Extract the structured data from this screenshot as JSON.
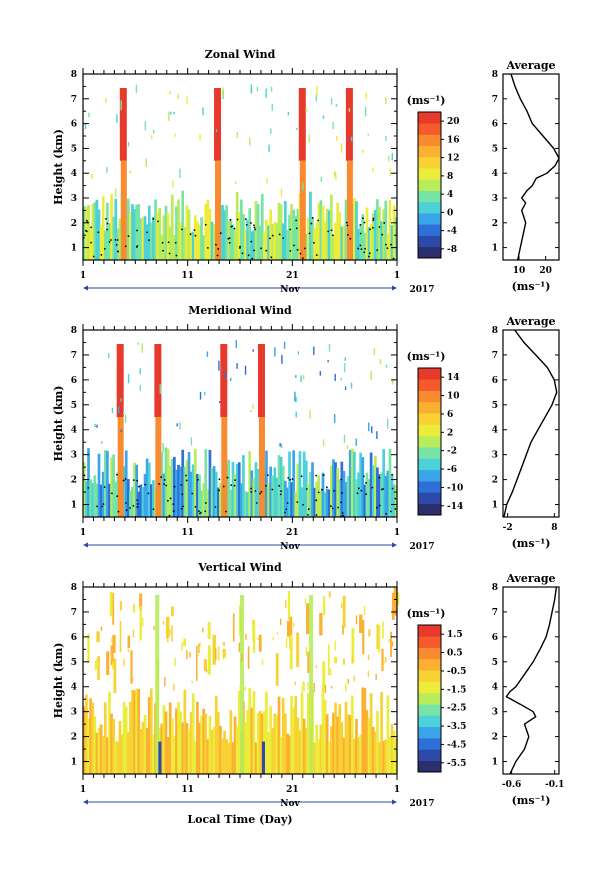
{
  "figure": {
    "xlabel": "Local Time (Day)",
    "month_label": "Nov",
    "year_label": "2017",
    "ylabel": "Height (km)",
    "unit_label": "(ms⁻¹)",
    "average_title": "Average"
  },
  "chart_data": [
    {
      "type": "heatmap",
      "title": "Zonal Wind",
      "x_ticks": [
        "1",
        "11",
        "21",
        "1"
      ],
      "y_ticks": [
        "1",
        "2",
        "3",
        "4",
        "5",
        "6",
        "7",
        "8"
      ],
      "ylim": [
        0.5,
        8
      ],
      "colorbar": {
        "ticks": [
          "20",
          "16",
          "12",
          "8",
          "4",
          "0",
          "-4",
          "-8"
        ],
        "range": [
          -10,
          22
        ],
        "colors": [
          "#2b2f6e",
          "#2e4aa8",
          "#2e6fd8",
          "#3aa5e8",
          "#4cd1d9",
          "#77e3a5",
          "#b8ec5a",
          "#ecec3a",
          "#f8d235",
          "#fbb032",
          "#f88a30",
          "#f45a2c",
          "#e83a2c"
        ]
      },
      "field": {
        "base": [
          "#4cd1d9",
          "#77e3a5",
          "#b8ec5a",
          "#ecec3a"
        ],
        "spikes": [
          0.13,
          0.43,
          0.7,
          0.85
        ],
        "zero_contour": true
      },
      "profile": {
        "xlabel": "(ms⁻¹)",
        "x_ticks": [
          "10",
          "20"
        ],
        "xlim": [
          4,
          25
        ],
        "height": [
          0.5,
          1.0,
          1.5,
          2.0,
          2.5,
          2.8,
          3.0,
          3.3,
          3.5,
          3.8,
          4.0,
          4.3,
          4.6,
          5.0,
          5.5,
          6.0,
          6.5,
          7.0,
          7.5,
          8.0
        ],
        "value": [
          9.5,
          10.5,
          11.5,
          12.5,
          11.0,
          12.5,
          11.0,
          13.0,
          15.0,
          16.5,
          20.5,
          23.5,
          25.0,
          23.0,
          19.0,
          15.0,
          13.0,
          10.5,
          8.5,
          7.0
        ]
      }
    },
    {
      "type": "heatmap",
      "title": "Meridional Wind",
      "x_ticks": [
        "1",
        "11",
        "21",
        "1"
      ],
      "y_ticks": [
        "1",
        "2",
        "3",
        "4",
        "5",
        "6",
        "7",
        "8"
      ],
      "ylim": [
        0.5,
        8
      ],
      "colorbar": {
        "ticks": [
          "14",
          "10",
          "6",
          "2",
          "-2",
          "-6",
          "-10",
          "-14"
        ],
        "range": [
          -16,
          16
        ],
        "colors": [
          "#2b2f6e",
          "#2e4aa8",
          "#2e6fd8",
          "#3aa5e8",
          "#4cd1d9",
          "#77e3a5",
          "#b8ec5a",
          "#ecec3a",
          "#f8d235",
          "#fbb032",
          "#f88a30",
          "#f45a2c",
          "#e83a2c"
        ]
      },
      "field": {
        "base": [
          "#2e6fd8",
          "#3aa5e8",
          "#4cd1d9",
          "#77e3a5",
          "#b8ec5a"
        ],
        "spikes": [
          0.12,
          0.24,
          0.45,
          0.57
        ],
        "zero_contour": true
      },
      "profile": {
        "xlabel": "(ms⁻¹)",
        "x_ticks": [
          "-2",
          "8"
        ],
        "xlim": [
          -3,
          9
        ],
        "height": [
          0.5,
          1.0,
          1.5,
          2.0,
          2.5,
          3.0,
          3.5,
          4.0,
          4.5,
          5.0,
          5.5,
          6.0,
          6.5,
          7.0,
          7.5,
          8.0
        ],
        "value": [
          -2.8,
          -2.2,
          -1.0,
          0.0,
          1.0,
          2.0,
          3.0,
          4.5,
          6.0,
          7.5,
          8.5,
          8.0,
          6.5,
          4.0,
          1.5,
          -0.5
        ]
      }
    },
    {
      "type": "heatmap",
      "title": "Vertical Wind",
      "x_ticks": [
        "1",
        "11",
        "21",
        "1"
      ],
      "y_ticks": [
        "1",
        "2",
        "3",
        "4",
        "5",
        "6",
        "7",
        "8"
      ],
      "ylim": [
        0.5,
        8
      ],
      "colorbar": {
        "ticks": [
          "1.5",
          "0.5",
          "-0.5",
          "-1.5",
          "-2.5",
          "-3.5",
          "-4.5",
          "-5.5"
        ],
        "range": [
          -6,
          2
        ],
        "colors": [
          "#2b2f6e",
          "#2e4aa8",
          "#2e6fd8",
          "#3aa5e8",
          "#4cd1d9",
          "#77e3a5",
          "#b8ec5a",
          "#ecec3a",
          "#f8d235",
          "#fbb032",
          "#f88a30",
          "#f45a2c",
          "#e83a2c"
        ]
      },
      "field": {
        "base": [
          "#fbb032",
          "#f8d235",
          "#ecec3a"
        ],
        "spikes": [],
        "zero_contour": false
      },
      "profile": {
        "xlabel": "(ms⁻¹)",
        "x_ticks": [
          "-0.6",
          "-0.1"
        ],
        "xlim": [
          -0.7,
          -0.05
        ],
        "height": [
          0.5,
          1.0,
          1.5,
          2.0,
          2.5,
          2.8,
          3.0,
          3.3,
          3.6,
          3.8,
          4.0,
          4.5,
          5.0,
          5.5,
          6.0,
          6.5,
          7.0,
          7.5,
          8.0
        ],
        "value": [
          -0.62,
          -0.55,
          -0.45,
          -0.4,
          -0.45,
          -0.32,
          -0.35,
          -0.5,
          -0.66,
          -0.62,
          -0.55,
          -0.45,
          -0.35,
          -0.27,
          -0.2,
          -0.16,
          -0.13,
          -0.1,
          -0.08
        ]
      }
    }
  ]
}
